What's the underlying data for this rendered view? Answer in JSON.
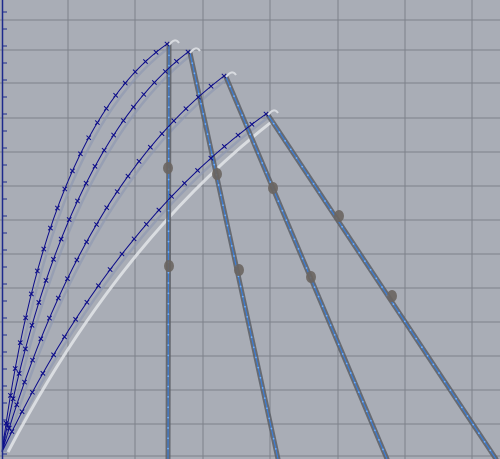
{
  "image": {
    "background_color": "#a9adb6",
    "grid_color": "#7d818a",
    "rod_shadow_color": "#5c5f66",
    "rod_line_color": "#3c7ed6",
    "curve_line_color": "#0a0a8a",
    "curve_marker": "x",
    "left_axis_color": "#1d2a8c",
    "rods": [
      {
        "label": "",
        "bend_angle_deg": 0
      },
      {
        "label": "",
        "bend_angle_deg": 16
      },
      {
        "label": "",
        "bend_angle_deg": 27
      },
      {
        "label": "",
        "bend_angle_deg": 35
      }
    ]
  }
}
